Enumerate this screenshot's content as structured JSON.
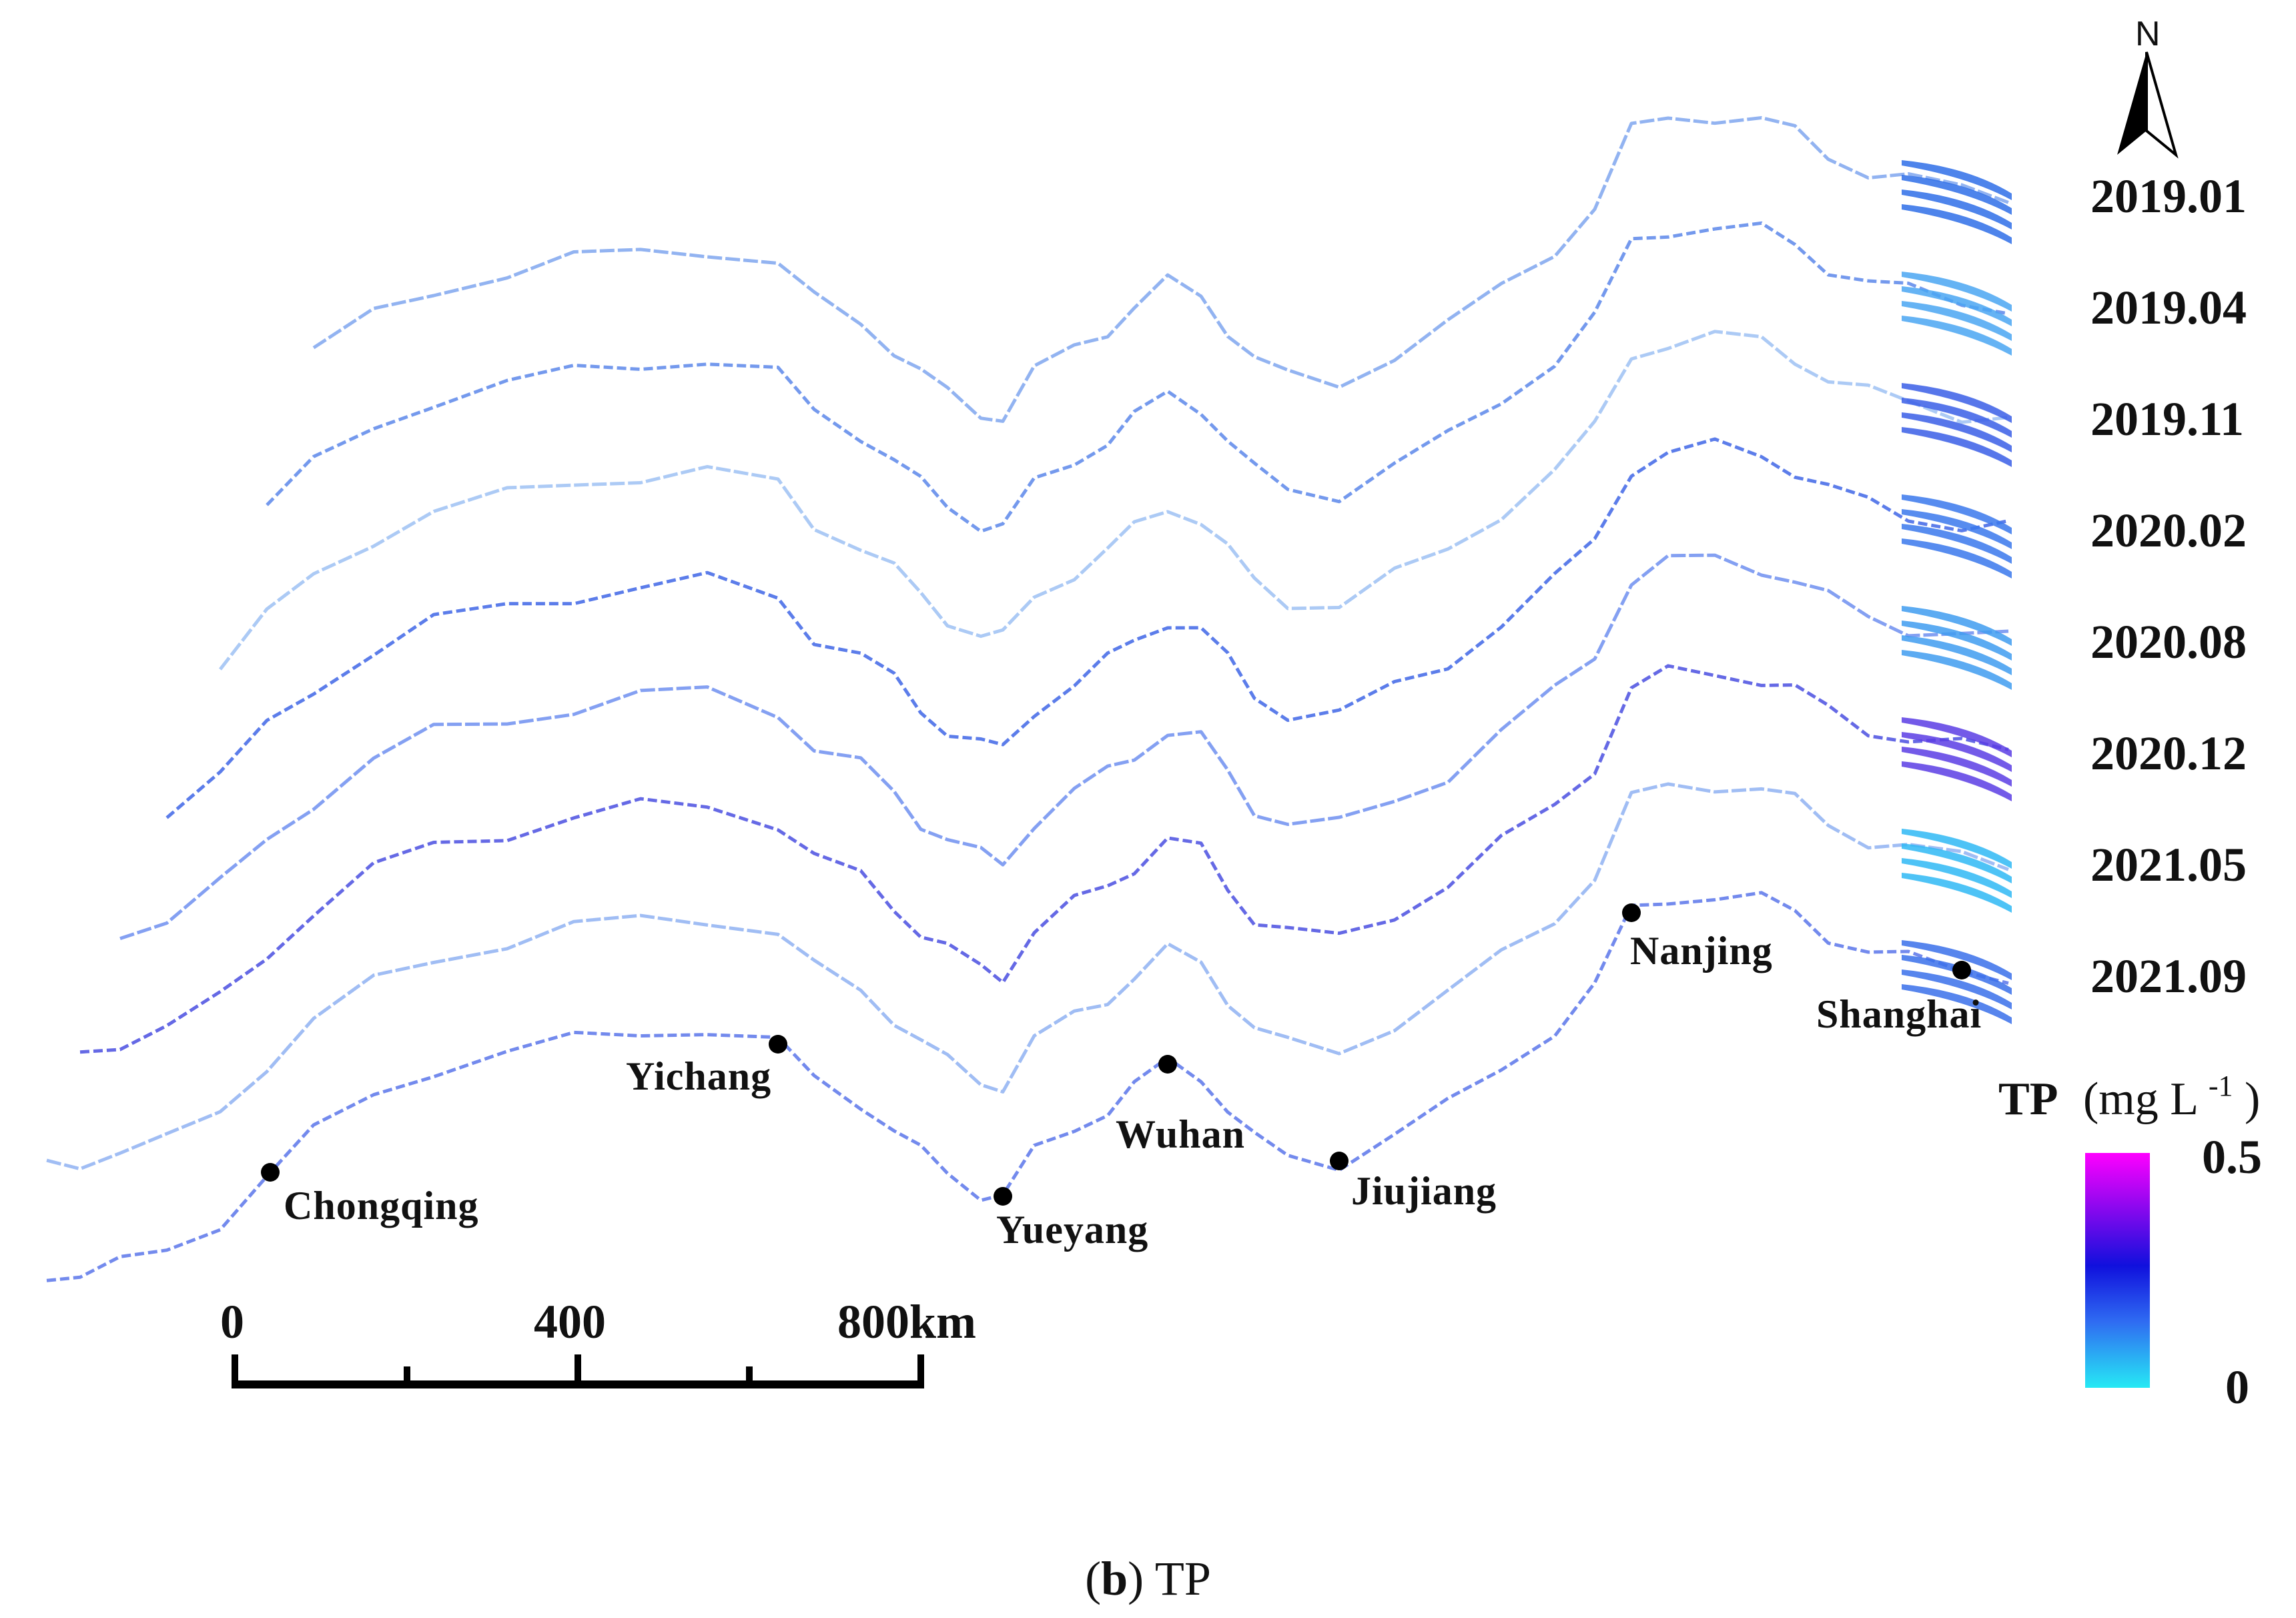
{
  "north_arrow": {
    "letter": "N"
  },
  "dates": [
    "2019.01",
    "2019.04",
    "2019.11",
    "2020.02",
    "2020.08",
    "2020.12",
    "2021.05",
    "2021.09"
  ],
  "cities": [
    {
      "name": "Chongqing",
      "id": "chongqing"
    },
    {
      "name": "Yichang",
      "id": "yichang"
    },
    {
      "name": "Yueyang",
      "id": "yueyang"
    },
    {
      "name": "Wuhan",
      "id": "wuhan"
    },
    {
      "name": "Jiujiang",
      "id": "jiujiang"
    },
    {
      "name": "Nanjing",
      "id": "nanjing"
    },
    {
      "name": "Shanghai",
      "id": "shanghai"
    }
  ],
  "scale_bar": {
    "ticks": [
      "0",
      "400",
      "800km"
    ]
  },
  "legend": {
    "variable": "TP",
    "unit_prefix": "(mg L",
    "unit_exp": "-1",
    "unit_suffix": ")",
    "max": "0.5",
    "min": "0",
    "colors": {
      "high": "#ff00ff",
      "mid": "#1010dd",
      "mid_low": "#2f6cf2",
      "low": "#26e9f4"
    }
  },
  "caption": {
    "panel": "b",
    "text": "TP"
  }
}
